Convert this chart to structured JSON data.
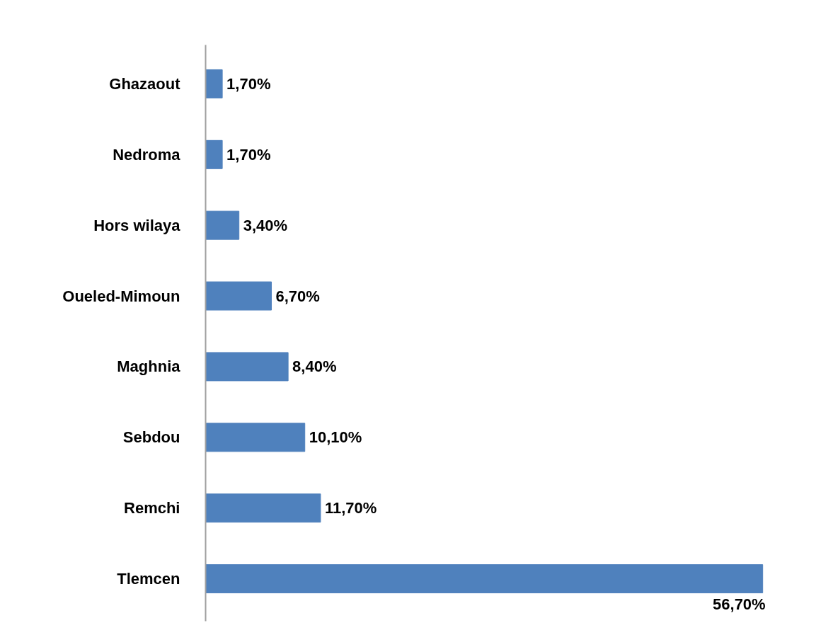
{
  "chart_data": {
    "type": "bar",
    "orientation": "horizontal",
    "categories": [
      "Ghazaout",
      "Nedroma",
      "Hors wilaya",
      "Oueled-Mimoun",
      "Maghnia",
      "Sebdou",
      "Remchi",
      "Tlemcen"
    ],
    "values": [
      1.7,
      1.7,
      3.4,
      6.7,
      8.4,
      10.1,
      11.7,
      56.7
    ],
    "color": "#4f81bd",
    "value_labels": [
      "1,70%",
      "1,70%",
      "3,40%",
      "6,70%",
      "8,40%",
      "10,10%",
      "11,70%",
      "56,70%"
    ]
  }
}
